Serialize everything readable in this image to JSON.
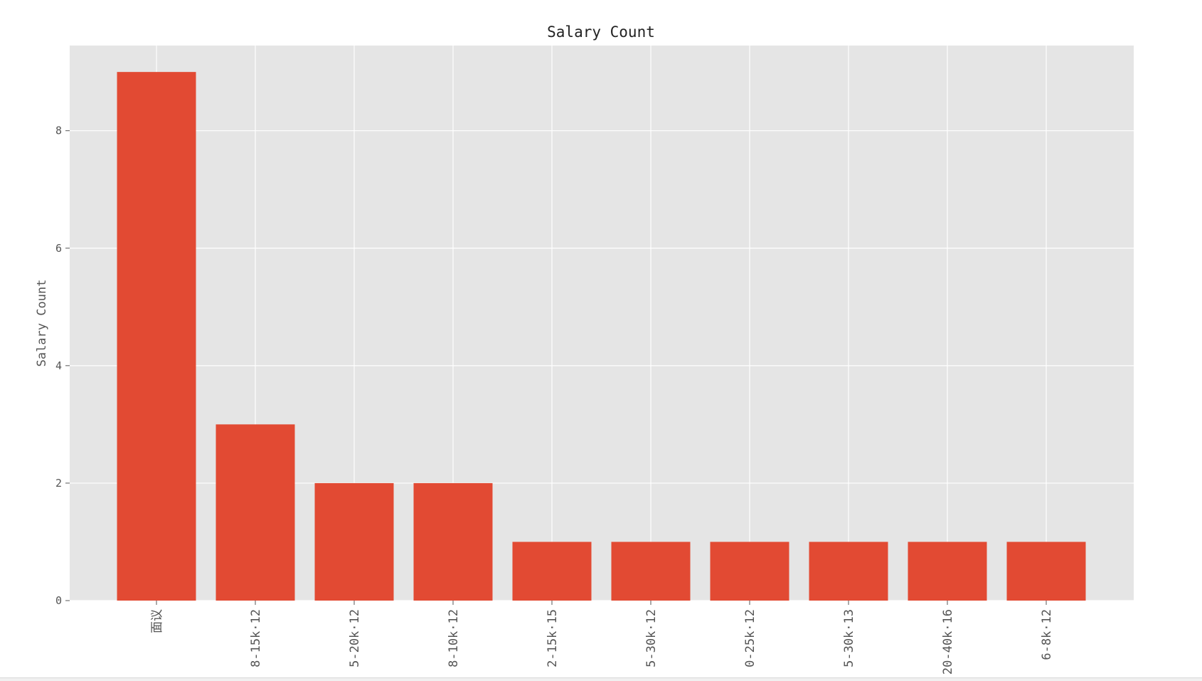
{
  "chart_data": {
    "type": "bar",
    "title": "Salary Count",
    "xlabel": "",
    "ylabel": "Salary Count",
    "categories": [
      "面议",
      "8-15k·12",
      "5-20k·12",
      "8-10k·12",
      "2-15k·15",
      "5-30k·12",
      "0-25k·12",
      "5-30k·13",
      "20-40k·16",
      "6-8k·12"
    ],
    "values": [
      9,
      3,
      2,
      2,
      1,
      1,
      1,
      1,
      1,
      1
    ],
    "ylim": [
      0,
      9.45
    ],
    "yticks": [
      0,
      2,
      4,
      6,
      8
    ],
    "grid": true,
    "bar_color": "#E24A33",
    "plot_bg": "#E5E5E5",
    "grid_color": "#FFFFFF"
  }
}
